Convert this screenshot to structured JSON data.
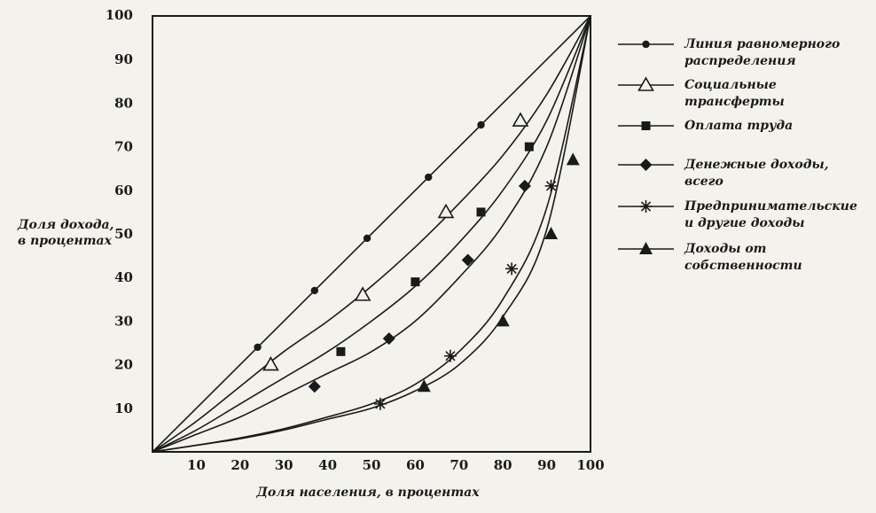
{
  "chart_data": {
    "type": "line",
    "title": "",
    "xlabel": "Доля населения, в процентах",
    "ylabel_lines": [
      "Доля дохода,",
      "в процентах"
    ],
    "xlim": [
      0,
      100
    ],
    "ylim": [
      0,
      100
    ],
    "x_ticks": [
      "10",
      "20",
      "30",
      "40",
      "50",
      "60",
      "70",
      "80",
      "90",
      "100"
    ],
    "y_ticks": [
      "10",
      "20",
      "30",
      "40",
      "50",
      "60",
      "70",
      "80",
      "90",
      "100"
    ],
    "grid": false,
    "legend_position": "right",
    "series": [
      {
        "name_lines": [
          "Линия равномерного",
          "распределения"
        ],
        "marker": "circle",
        "line": [
          [
            0,
            0
          ],
          [
            100,
            100
          ]
        ],
        "markers": [
          [
            24,
            24
          ],
          [
            37,
            37
          ],
          [
            49,
            49
          ],
          [
            63,
            63
          ],
          [
            75,
            75
          ]
        ]
      },
      {
        "name_lines": [
          "Социальные",
          "трансферты"
        ],
        "marker": "triangle-open",
        "line": [
          [
            0,
            0
          ],
          [
            10,
            7
          ],
          [
            20,
            15
          ],
          [
            30,
            23
          ],
          [
            40,
            30
          ],
          [
            50,
            38
          ],
          [
            60,
            47
          ],
          [
            70,
            57
          ],
          [
            80,
            68
          ],
          [
            90,
            82
          ],
          [
            100,
            100
          ]
        ],
        "markers": [
          [
            27,
            20
          ],
          [
            48,
            36
          ],
          [
            67,
            55
          ],
          [
            84,
            76
          ]
        ]
      },
      {
        "name_lines": [
          "Оплата труда"
        ],
        "marker": "square",
        "line": [
          [
            0,
            0
          ],
          [
            10,
            5
          ],
          [
            20,
            11
          ],
          [
            30,
            17
          ],
          [
            40,
            23
          ],
          [
            50,
            30
          ],
          [
            60,
            38
          ],
          [
            70,
            48
          ],
          [
            80,
            60
          ],
          [
            90,
            76
          ],
          [
            100,
            100
          ]
        ],
        "markers": [
          [
            43,
            23
          ],
          [
            60,
            39
          ],
          [
            75,
            55
          ],
          [
            86,
            70
          ]
        ]
      },
      {
        "name_lines": [
          "Денежные доходы,",
          "всего"
        ],
        "marker": "diamond",
        "line": [
          [
            0,
            0
          ],
          [
            10,
            4
          ],
          [
            20,
            8
          ],
          [
            30,
            13
          ],
          [
            40,
            18
          ],
          [
            50,
            23
          ],
          [
            60,
            30
          ],
          [
            70,
            40
          ],
          [
            80,
            52
          ],
          [
            90,
            70
          ],
          [
            100,
            100
          ]
        ],
        "markers": [
          [
            37,
            15
          ],
          [
            54,
            26
          ],
          [
            72,
            44
          ],
          [
            85,
            61
          ]
        ]
      },
      {
        "name_lines": [
          "Предпринимательские",
          "и другие доходы"
        ],
        "marker": "star",
        "line": [
          [
            0,
            0
          ],
          [
            10,
            1.5
          ],
          [
            20,
            3.2
          ],
          [
            30,
            5.3
          ],
          [
            40,
            8
          ],
          [
            50,
            11
          ],
          [
            60,
            15.5
          ],
          [
            70,
            23
          ],
          [
            80,
            35
          ],
          [
            90,
            56
          ],
          [
            100,
            100
          ]
        ],
        "markers": [
          [
            52,
            11
          ],
          [
            68,
            22
          ],
          [
            82,
            42
          ],
          [
            91,
            61
          ]
        ]
      },
      {
        "name_lines": [
          "Доходы от",
          "собственности"
        ],
        "marker": "triangle-filled",
        "line": [
          [
            0,
            0
          ],
          [
            10,
            1.5
          ],
          [
            20,
            3
          ],
          [
            30,
            5
          ],
          [
            40,
            7.5
          ],
          [
            50,
            10
          ],
          [
            60,
            14
          ],
          [
            70,
            20
          ],
          [
            80,
            31
          ],
          [
            90,
            51
          ],
          [
            100,
            100
          ]
        ],
        "markers": [
          [
            62,
            15
          ],
          [
            80,
            30
          ],
          [
            91,
            50
          ],
          [
            96,
            67
          ]
        ]
      }
    ]
  }
}
